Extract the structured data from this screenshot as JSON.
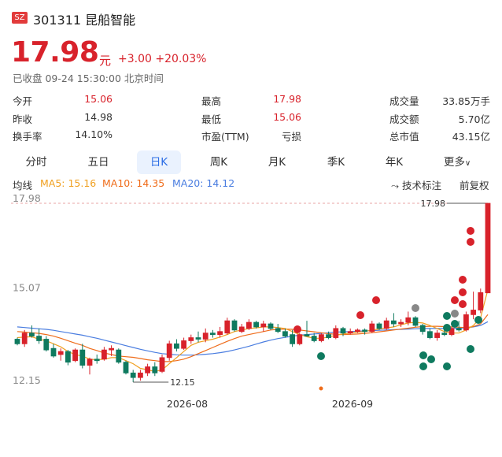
{
  "header": {
    "exchange": "SZ",
    "code_name": "301311 昆船智能",
    "price": "17.98",
    "unit": "元",
    "change": "+3.00 +20.03%",
    "status": "已收盘 09-24 15:30:00 北京时间"
  },
  "stats": [
    {
      "label": "今开",
      "value": "15.06",
      "color": "red"
    },
    {
      "label": "最高",
      "value": "17.98",
      "color": "red"
    },
    {
      "label": "成交量",
      "value": "33.85万手",
      "color": "dark"
    },
    {
      "label": "昨收",
      "value": "14.98",
      "color": "dark"
    },
    {
      "label": "最低",
      "value": "15.06",
      "color": "red"
    },
    {
      "label": "成交额",
      "value": "5.70亿",
      "color": "dark"
    },
    {
      "label": "换手率",
      "value": "14.10%",
      "color": "dark"
    },
    {
      "label": "市盈(TTM)",
      "value": "亏损",
      "color": "dark"
    },
    {
      "label": "总市值",
      "value": "43.15亿",
      "color": "dark"
    }
  ],
  "tabs": [
    "分时",
    "五日",
    "日K",
    "周K",
    "月K",
    "季K",
    "年K",
    "更多"
  ],
  "active_tab": "日K",
  "indicators": {
    "label": "均线",
    "ma5": "MA5: 15.16",
    "ma10": "MA10: 14.35",
    "ma20": "MA20: 14.12",
    "tech_label": "技术标注",
    "adjust": "前复权"
  },
  "colors": {
    "up": "#d8222b",
    "down": "#0f7a5f",
    "ma5": "#f0a020",
    "ma10": "#ef6c1a",
    "ma20": "#4a7de0",
    "accent": "#2b6de5"
  },
  "chart_data": {
    "type": "candlestick",
    "y_ticks": [
      "17.98",
      "15.07",
      "12.15"
    ],
    "x_ticks": [
      "2026-08",
      "2026-09"
    ],
    "ylim": [
      12.15,
      17.98
    ],
    "max_label": "17.98",
    "min_label": "12.15",
    "candles": [
      [
        13.55,
        13.6,
        13.35,
        13.4
      ],
      [
        13.4,
        13.85,
        13.3,
        13.75
      ],
      [
        13.75,
        14.0,
        13.6,
        13.65
      ],
      [
        13.65,
        13.9,
        13.4,
        13.5
      ],
      [
        13.55,
        13.65,
        13.15,
        13.2
      ],
      [
        13.25,
        13.4,
        12.95,
        13.0
      ],
      [
        13.05,
        13.25,
        12.85,
        13.15
      ],
      [
        13.15,
        13.2,
        12.7,
        12.8
      ],
      [
        12.85,
        13.25,
        12.8,
        13.2
      ],
      [
        13.2,
        13.4,
        12.6,
        12.7
      ],
      [
        12.7,
        12.95,
        12.4,
        12.9
      ],
      [
        12.9,
        13.05,
        12.75,
        12.85
      ],
      [
        12.9,
        13.3,
        12.85,
        13.2
      ],
      [
        13.2,
        13.35,
        13.0,
        13.25
      ],
      [
        13.2,
        13.25,
        12.75,
        12.8
      ],
      [
        12.8,
        12.85,
        12.4,
        12.45
      ],
      [
        12.45,
        12.55,
        12.15,
        12.3
      ],
      [
        12.3,
        12.55,
        12.2,
        12.45
      ],
      [
        12.45,
        12.75,
        12.35,
        12.65
      ],
      [
        12.65,
        12.8,
        12.35,
        12.45
      ],
      [
        12.5,
        13.05,
        12.45,
        12.95
      ],
      [
        12.95,
        13.5,
        12.85,
        13.4
      ],
      [
        13.4,
        13.55,
        13.15,
        13.25
      ],
      [
        13.25,
        13.6,
        13.2,
        13.5
      ],
      [
        13.5,
        13.7,
        13.4,
        13.6
      ],
      [
        13.6,
        13.8,
        13.45,
        13.55
      ],
      [
        13.55,
        13.9,
        13.45,
        13.75
      ],
      [
        13.75,
        13.85,
        13.6,
        13.7
      ],
      [
        13.7,
        13.95,
        13.6,
        13.8
      ],
      [
        13.75,
        14.25,
        13.7,
        14.15
      ],
      [
        14.15,
        14.2,
        13.8,
        13.85
      ],
      [
        13.8,
        14.05,
        13.75,
        13.95
      ],
      [
        13.9,
        14.2,
        13.85,
        14.1
      ],
      [
        14.1,
        14.15,
        13.9,
        13.95
      ],
      [
        13.95,
        14.15,
        13.8,
        14.05
      ],
      [
        14.05,
        14.1,
        13.85,
        13.9
      ],
      [
        13.9,
        14.05,
        13.75,
        13.8
      ],
      [
        13.8,
        13.9,
        13.6,
        13.65
      ],
      [
        13.7,
        13.85,
        13.3,
        13.4
      ],
      [
        13.4,
        13.75,
        13.35,
        13.7
      ],
      [
        13.7,
        14.15,
        13.65,
        13.65
      ],
      [
        13.65,
        13.75,
        13.45,
        13.5
      ],
      [
        13.5,
        13.75,
        13.45,
        13.7
      ],
      [
        13.7,
        13.8,
        13.55,
        13.6
      ],
      [
        13.6,
        14.0,
        13.55,
        13.9
      ],
      [
        13.9,
        13.95,
        13.65,
        13.75
      ],
      [
        13.75,
        13.9,
        13.7,
        13.8
      ],
      [
        13.8,
        13.9,
        13.75,
        13.85
      ],
      [
        13.85,
        13.9,
        13.7,
        13.8
      ],
      [
        13.8,
        14.15,
        13.75,
        14.05
      ],
      [
        14.05,
        14.1,
        13.85,
        13.9
      ],
      [
        13.9,
        14.25,
        13.85,
        14.15
      ],
      [
        14.15,
        14.4,
        13.95,
        14.05
      ],
      [
        14.05,
        14.2,
        13.95,
        14.1
      ],
      [
        14.1,
        14.45,
        14.0,
        14.25
      ],
      [
        14.25,
        14.3,
        13.95,
        14.0
      ],
      [
        14.0,
        14.05,
        13.7,
        13.8
      ],
      [
        13.8,
        13.9,
        13.55,
        13.6
      ],
      [
        13.6,
        13.85,
        13.5,
        13.75
      ],
      [
        13.75,
        13.95,
        13.65,
        13.7
      ],
      [
        13.7,
        13.95,
        13.65,
        13.9
      ],
      [
        13.9,
        14.15,
        13.8,
        13.85
      ],
      [
        13.85,
        14.45,
        13.8,
        14.35
      ],
      [
        14.35,
        15.1,
        14.2,
        14.5
      ],
      [
        14.5,
        15.2,
        14.4,
        15.07
      ],
      [
        15.06,
        17.98,
        15.06,
        17.98
      ]
    ],
    "ma5": [
      13.6,
      13.62,
      13.63,
      13.55,
      13.5,
      13.4,
      13.3,
      13.15,
      13.05,
      13.0,
      12.9,
      12.88,
      12.9,
      12.95,
      12.95,
      12.85,
      12.75,
      12.6,
      12.55,
      12.5,
      12.55,
      12.75,
      12.95,
      13.15,
      13.35,
      13.45,
      13.5,
      13.55,
      13.62,
      13.7,
      13.8,
      13.85,
      13.9,
      13.92,
      13.95,
      13.95,
      13.93,
      13.9,
      13.8,
      13.7,
      13.63,
      13.58,
      13.58,
      13.62,
      13.68,
      13.72,
      13.75,
      13.78,
      13.8,
      13.85,
      13.88,
      13.92,
      13.95,
      14.02,
      14.08,
      14.1,
      14.08,
      14.0,
      13.9,
      13.8,
      13.75,
      13.75,
      13.85,
      14.0,
      14.25,
      15.16
    ],
    "ma10": [
      13.8,
      13.78,
      13.76,
      13.74,
      13.7,
      13.65,
      13.58,
      13.5,
      13.42,
      13.35,
      13.25,
      13.18,
      13.1,
      13.05,
      13.0,
      12.98,
      12.96,
      12.92,
      12.88,
      12.85,
      12.82,
      12.82,
      12.85,
      12.9,
      12.98,
      13.08,
      13.18,
      13.28,
      13.38,
      13.48,
      13.57,
      13.65,
      13.7,
      13.75,
      13.8,
      13.85,
      13.87,
      13.88,
      13.87,
      13.85,
      13.82,
      13.79,
      13.76,
      13.73,
      13.71,
      13.7,
      13.71,
      13.72,
      13.74,
      13.76,
      13.79,
      13.82,
      13.85,
      13.88,
      13.91,
      13.94,
      13.96,
      13.97,
      13.97,
      13.96,
      13.95,
      13.94,
      13.93,
      13.96,
      14.05,
      14.35
    ],
    "ma20": [
      13.95,
      13.93,
      13.91,
      13.89,
      13.87,
      13.84,
      13.8,
      13.76,
      13.72,
      13.68,
      13.63,
      13.58,
      13.52,
      13.46,
      13.4,
      13.34,
      13.28,
      13.22,
      13.17,
      13.12,
      13.08,
      13.06,
      13.04,
      13.03,
      13.03,
      13.04,
      13.06,
      13.08,
      13.11,
      13.15,
      13.2,
      13.26,
      13.32,
      13.39,
      13.46,
      13.52,
      13.57,
      13.61,
      13.65,
      13.68,
      13.7,
      13.72,
      13.74,
      13.76,
      13.78,
      13.79,
      13.8,
      13.81,
      13.82,
      13.83,
      13.84,
      13.85,
      13.86,
      13.87,
      13.88,
      13.89,
      13.9,
      13.9,
      13.9,
      13.9,
      13.9,
      13.91,
      13.92,
      13.95,
      14.0,
      14.12
    ]
  }
}
